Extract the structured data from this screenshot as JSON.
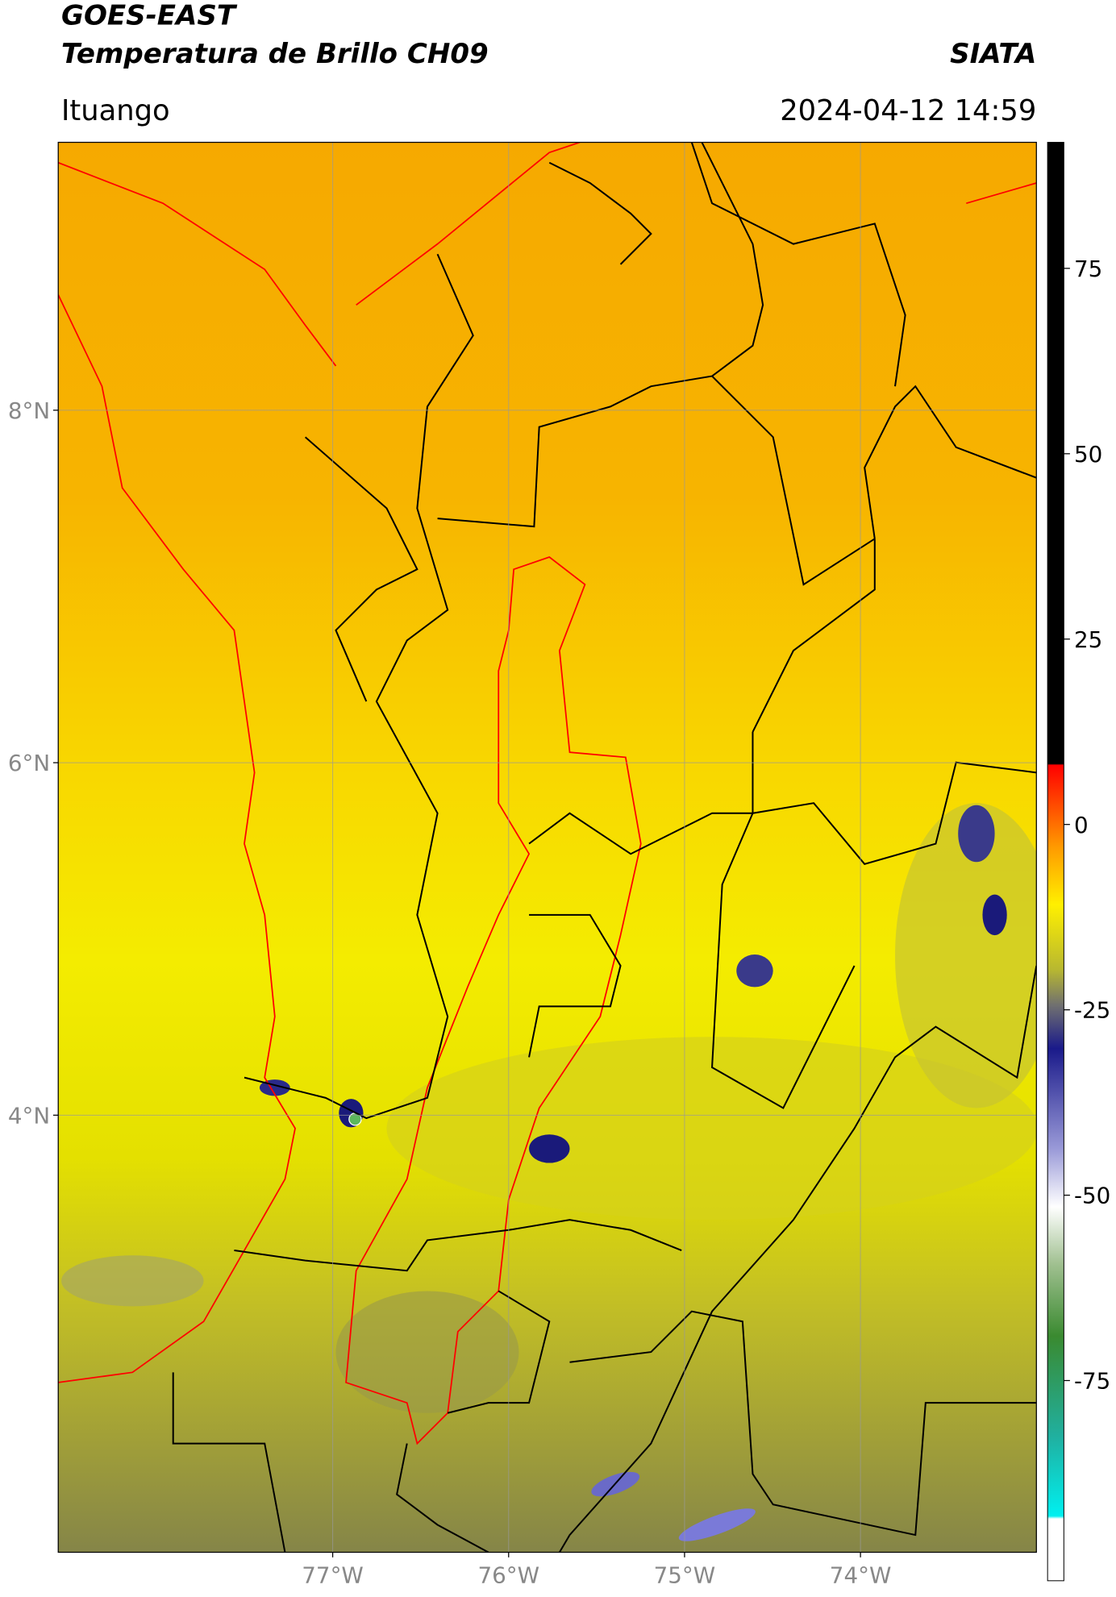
{
  "header": {
    "satellite": "GOES-EAST",
    "product": "Temperatura de Brillo CH09",
    "organization": "SIATA",
    "region": "Ituango",
    "datetime": "2024-04-12 14:59"
  },
  "map": {
    "latlim": [
      1.52,
      9.52
    ],
    "lonlim": [
      -78.56,
      -73.0
    ],
    "lat_ticks": [
      {
        "value": 8,
        "label": "8°N"
      },
      {
        "value": 6,
        "label": "6°N"
      },
      {
        "value": 4,
        "label": "4°N"
      }
    ],
    "lon_ticks": [
      {
        "value": -77,
        "label": "77°W"
      },
      {
        "value": -76,
        "label": "76°W"
      },
      {
        "value": -75,
        "label": "75°W"
      },
      {
        "value": -74,
        "label": "74°W"
      }
    ],
    "grid": true
  },
  "colorbar": {
    "lim": [
      -102,
      92
    ],
    "ticks": [
      75,
      50,
      25,
      0,
      -25,
      -50,
      -75
    ]
  }
}
